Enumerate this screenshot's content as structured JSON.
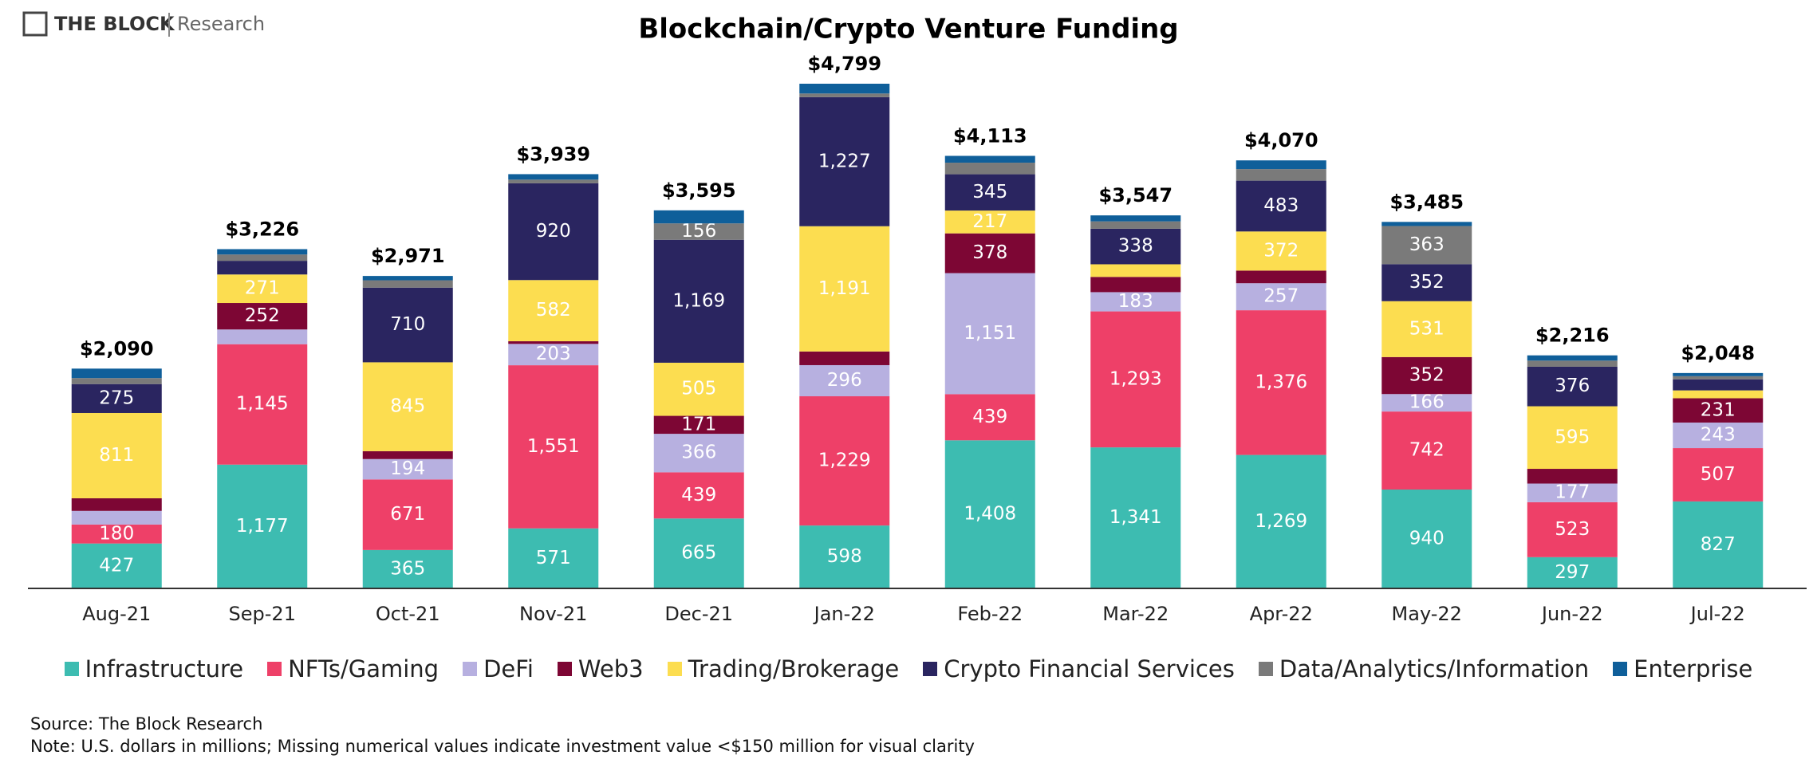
{
  "brand": {
    "name": "THE BLOCK",
    "sub": "Research"
  },
  "chart_data": {
    "type": "stacked_bar",
    "title": "Blockchain/Crypto Venture Funding",
    "categories": [
      "Aug-21",
      "Sep-21",
      "Oct-21",
      "Nov-21",
      "Dec-21",
      "Jan-22",
      "Feb-22",
      "Mar-22",
      "Apr-22",
      "May-22",
      "Jun-22",
      "Jul-22"
    ],
    "series": [
      {
        "name": "Infrastructure",
        "color": "#3dbcb1",
        "values": [
          427,
          1177,
          365,
          571,
          665,
          598,
          1408,
          1341,
          1269,
          940,
          297,
          827
        ],
        "value_labels": [
          "427",
          "1,177",
          "365",
          "571",
          "665",
          "598",
          "1,408",
          "1,341",
          "1,269",
          "940",
          "297",
          "827"
        ]
      },
      {
        "name": "NFTs/Gaming",
        "color": "#ee4068",
        "values": [
          180,
          1145,
          671,
          1551,
          439,
          1229,
          439,
          1293,
          1376,
          742,
          523,
          507
        ],
        "value_labels": [
          "180",
          "1,145",
          "671",
          "1,551",
          "439",
          "1,229",
          "439",
          "1,293",
          "1,376",
          "742",
          "523",
          "507"
        ]
      },
      {
        "name": "DeFi",
        "color": "#b7b0e0",
        "values": [
          130,
          140,
          194,
          203,
          366,
          296,
          1151,
          183,
          257,
          166,
          177,
          243
        ],
        "value_labels": [
          null,
          null,
          "194",
          "203",
          "366",
          "296",
          "1,151",
          "183",
          "257",
          "166",
          "177",
          "243"
        ]
      },
      {
        "name": "Web3",
        "color": "#7d0634",
        "values": [
          120,
          252,
          75,
          25,
          171,
          130,
          378,
          145,
          120,
          352,
          140,
          231
        ],
        "value_labels": [
          null,
          "252",
          null,
          null,
          "171",
          null,
          "378",
          null,
          null,
          "352",
          null,
          "231"
        ]
      },
      {
        "name": "Trading/Brokerage",
        "color": "#fcdd50",
        "values": [
          811,
          271,
          845,
          582,
          505,
          1191,
          217,
          120,
          372,
          531,
          595,
          75
        ],
        "value_labels": [
          "811",
          "271",
          "845",
          "582",
          "505",
          "1,191",
          "217",
          null,
          "372",
          "531",
          "595",
          null
        ]
      },
      {
        "name": "Crypto Financial Services",
        "color": "#2a2560",
        "values": [
          275,
          130,
          710,
          920,
          1169,
          1227,
          345,
          338,
          483,
          352,
          376,
          105
        ],
        "value_labels": [
          "275",
          null,
          "710",
          "920",
          "1,169",
          "1,227",
          "345",
          "338",
          "483",
          "352",
          "376",
          null
        ]
      },
      {
        "name": "Data/Analytics/Information",
        "color": "#7a7a7a",
        "values": [
          57,
          60,
          70,
          35,
          156,
          35,
          110,
          70,
          110,
          363,
          58,
          30
        ],
        "value_labels": [
          null,
          null,
          null,
          null,
          "156",
          null,
          null,
          null,
          null,
          "363",
          null,
          null
        ]
      },
      {
        "name": "Enterprise",
        "color": "#0f5f9a",
        "values": [
          90,
          51,
          41,
          52,
          124,
          93,
          65,
          57,
          83,
          39,
          50,
          30
        ],
        "value_labels": [
          null,
          null,
          null,
          null,
          null,
          null,
          null,
          null,
          null,
          null,
          null,
          null
        ]
      }
    ],
    "totals": [
      2090,
      3226,
      2971,
      3939,
      3595,
      4799,
      4113,
      3547,
      4070,
      3485,
      2216,
      2048
    ],
    "total_labels": [
      "$2,090",
      "$3,226",
      "$2,971",
      "$3,939",
      "$3,595",
      "$4,799",
      "$4,113",
      "$3,547",
      "$4,070",
      "$3,485",
      "$2,216",
      "$2,048"
    ],
    "source": "Source: The Block Research",
    "note": "Note: U.S. dollars in millions; Missing numerical values indicate investment value <$150 million for visual clarity"
  }
}
